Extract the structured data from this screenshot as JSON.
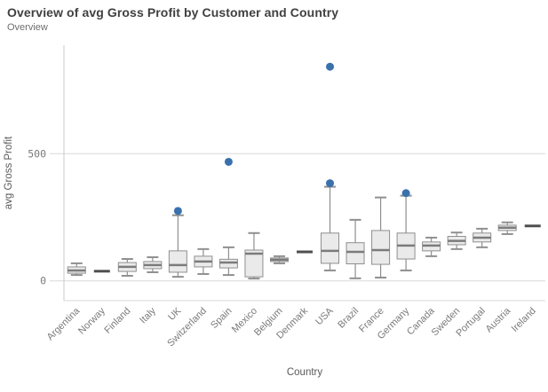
{
  "header": {
    "title": "Overview of avg Gross Profit by Customer and Country",
    "subtitle": "Overview"
  },
  "chart_data": {
    "type": "boxplot",
    "title": "Overview of avg Gross Profit by Customer and Country",
    "subtitle": "Overview",
    "xlabel": "Country",
    "ylabel": "avg Gross Profit",
    "ylim": [
      0,
      925
    ],
    "yticks": [
      0,
      500
    ],
    "ytick_labels": [
      "0",
      "500"
    ],
    "grid": "horizontal",
    "legend": "none",
    "categories": [
      "Argentina",
      "Norway",
      "Finland",
      "Italy",
      "UK",
      "Switzerland",
      "Spain",
      "Mexico",
      "Belgium",
      "Denmark",
      "USA",
      "Brazil",
      "France",
      "Germany",
      "Canada",
      "Sweden",
      "Portugal",
      "Austria",
      "Ireland"
    ],
    "boxes": [
      {
        "country": "Argentina",
        "low": 23,
        "q1": 30,
        "median": 41,
        "q3": 55,
        "high": 69,
        "outliers": []
      },
      {
        "country": "Norway",
        "median_only": true,
        "median": 38,
        "outliers": []
      },
      {
        "country": "Finland",
        "low": 20,
        "q1": 37,
        "median": 55,
        "q3": 72,
        "high": 86,
        "outliers": []
      },
      {
        "country": "Italy",
        "low": 34,
        "q1": 48,
        "median": 62,
        "q3": 76,
        "high": 93,
        "outliers": []
      },
      {
        "country": "UK",
        "low": 16,
        "q1": 34,
        "median": 62,
        "q3": 118,
        "high": 258,
        "outliers": [
          275
        ]
      },
      {
        "country": "Switzerland",
        "low": 27,
        "q1": 55,
        "median": 76,
        "q3": 97,
        "high": 125,
        "outliers": []
      },
      {
        "country": "Spain",
        "low": 23,
        "q1": 51,
        "median": 72,
        "q3": 85,
        "high": 132,
        "outliers": [
          468
        ]
      },
      {
        "country": "Mexico",
        "low": 9,
        "q1": 16,
        "median": 107,
        "q3": 121,
        "high": 188,
        "outliers": []
      },
      {
        "country": "Belgium",
        "low": 69,
        "q1": 76,
        "median": 83,
        "q3": 90,
        "high": 97,
        "outliers": []
      },
      {
        "country": "Denmark",
        "median_only": true,
        "median": 114,
        "outliers": []
      },
      {
        "country": "USA",
        "low": 41,
        "q1": 69,
        "median": 118,
        "q3": 188,
        "high": 370,
        "outliers": [
          384,
          842
        ]
      },
      {
        "country": "Brazil",
        "low": 10,
        "q1": 67,
        "median": 114,
        "q3": 150,
        "high": 240,
        "outliers": []
      },
      {
        "country": "France",
        "low": 13,
        "q1": 65,
        "median": 121,
        "q3": 198,
        "high": 328,
        "outliers": []
      },
      {
        "country": "Germany",
        "low": 41,
        "q1": 86,
        "median": 139,
        "q3": 188,
        "high": 335,
        "outliers": [
          345
        ]
      },
      {
        "country": "Canada",
        "low": 97,
        "q1": 118,
        "median": 139,
        "q3": 153,
        "high": 170,
        "outliers": []
      },
      {
        "country": "Sweden",
        "low": 125,
        "q1": 142,
        "median": 157,
        "q3": 175,
        "high": 190,
        "outliers": []
      },
      {
        "country": "Portugal",
        "low": 132,
        "q1": 153,
        "median": 170,
        "q3": 188,
        "high": 205,
        "outliers": []
      },
      {
        "country": "Austria",
        "low": 184,
        "q1": 198,
        "median": 209,
        "q3": 219,
        "high": 230,
        "outliers": []
      },
      {
        "country": "Ireland",
        "median_only": true,
        "median": 216,
        "outliers": []
      }
    ],
    "colors": {
      "outlier": "#3a71ad",
      "box_fill": "#eaeaea",
      "box_stroke": "#8f8f8f",
      "median": "#7b7b7b",
      "dash": "#4f4f4f",
      "gridline": "#d9d9d9",
      "axis_line": "#c8c8c8",
      "tick_text": "#7a7a7a",
      "axis_title_text": "#595959"
    }
  }
}
